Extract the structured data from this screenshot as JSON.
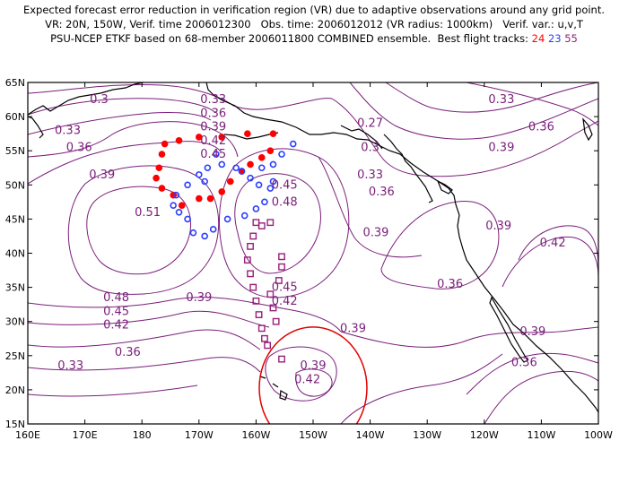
{
  "title": {
    "line1": "Expected forecast error reduction in verification region (VR) due to adaptive observations around any grid point.",
    "line2": "VR: 20N, 150W, Verif. time 2006012300   Obs. time: 2006012012 (VR radius: 1000km)   Verif. var.: u,v,T",
    "line3_prefix": "PSU-NCEP ETKF based on 68-member 2006011800 COMBINED ensemble.  Best flight tracks: ",
    "track_a": "24",
    "track_b": "23",
    "track_c": "55"
  },
  "colors": {
    "contour": "#7a1f7a",
    "coast": "#000000",
    "track_a": "#ff0000",
    "track_b": "#2b3fff",
    "track_c": "#9a1f7a",
    "verification_circle": "#e00000"
  },
  "axes": {
    "lat_labels": [
      "65N",
      "60N",
      "55N",
      "50N",
      "45N",
      "40N",
      "35N",
      "30N",
      "25N",
      "20N",
      "15N"
    ],
    "lon_labels": [
      "160E",
      "170E",
      "180",
      "170W",
      "160W",
      "150W",
      "140W",
      "130W",
      "120W",
      "110W",
      "100W"
    ]
  },
  "contour_labels": [
    {
      "text": "0.3",
      "lon": 172.5,
      "lat": 62.5
    },
    {
      "text": "0.33",
      "lon": -167.5,
      "lat": 62.5
    },
    {
      "text": "0.36",
      "lon": -167.5,
      "lat": 60.5
    },
    {
      "text": "0.39",
      "lon": -167.5,
      "lat": 58.5
    },
    {
      "text": "0.42",
      "lon": -167.5,
      "lat": 56.5
    },
    {
      "text": "0.45",
      "lon": -167.5,
      "lat": 54.5
    },
    {
      "text": "0.33",
      "lon": 167,
      "lat": 58
    },
    {
      "text": "0.36",
      "lon": 169,
      "lat": 55.5
    },
    {
      "text": "0.39",
      "lon": 173,
      "lat": 51.5
    },
    {
      "text": "0.51",
      "lon": -179,
      "lat": 46
    },
    {
      "text": "0.45",
      "lon": -155,
      "lat": 50
    },
    {
      "text": "0.48",
      "lon": -155,
      "lat": 47.5
    },
    {
      "text": "0.27",
      "lon": -140,
      "lat": 59
    },
    {
      "text": "0.3",
      "lon": -140,
      "lat": 55.5
    },
    {
      "text": "0.33",
      "lon": -140,
      "lat": 51.5
    },
    {
      "text": "0.36",
      "lon": -138,
      "lat": 49
    },
    {
      "text": "0.39",
      "lon": -139,
      "lat": 43
    },
    {
      "text": "0.33",
      "lon": -117,
      "lat": 62.5
    },
    {
      "text": "0.39",
      "lon": -117,
      "lat": 55.5
    },
    {
      "text": "0.36",
      "lon": -110,
      "lat": 58.5
    },
    {
      "text": "0.39",
      "lon": -117.5,
      "lat": 44
    },
    {
      "text": "0.42",
      "lon": -108,
      "lat": 41.5
    },
    {
      "text": "0.36",
      "lon": -126,
      "lat": 35.5
    },
    {
      "text": "0.48",
      "lon": 175.5,
      "lat": 33.5
    },
    {
      "text": "0.45",
      "lon": 175.5,
      "lat": 31.5
    },
    {
      "text": "0.42",
      "lon": 175.5,
      "lat": 29.5
    },
    {
      "text": "0.39",
      "lon": -170,
      "lat": 33.5
    },
    {
      "text": "0.45",
      "lon": -155,
      "lat": 35
    },
    {
      "text": "0.42",
      "lon": -155,
      "lat": 33
    },
    {
      "text": "0.39",
      "lon": -143,
      "lat": 29
    },
    {
      "text": "0.36",
      "lon": 177.5,
      "lat": 25.5
    },
    {
      "text": "0.33",
      "lon": 167.5,
      "lat": 23.5
    },
    {
      "text": "0.39",
      "lon": -150,
      "lat": 23.5
    },
    {
      "text": "0.42",
      "lon": -151,
      "lat": 21.5
    },
    {
      "text": "0.39",
      "lon": -111.5,
      "lat": 28.5
    },
    {
      "text": "0.36",
      "lon": -113,
      "lat": 24
    }
  ],
  "tracks": {
    "red": [
      [
        -173.5,
        56.5
      ],
      [
        -170,
        57
      ],
      [
        -176,
        56
      ],
      [
        -176.5,
        54.5
      ],
      [
        -177,
        52.5
      ],
      [
        -177.5,
        51
      ],
      [
        -176.5,
        49.5
      ],
      [
        -174.5,
        48.5
      ],
      [
        -173,
        47
      ],
      [
        -170,
        48
      ],
      [
        -168,
        48
      ],
      [
        -166,
        49
      ],
      [
        -164.5,
        50.5
      ],
      [
        -162.5,
        52
      ],
      [
        -161,
        53
      ],
      [
        -159,
        54
      ],
      [
        -157.5,
        55
      ],
      [
        -166,
        57
      ],
      [
        -161.5,
        57.5
      ],
      [
        -157,
        57.5
      ]
    ],
    "blue": [
      [
        -174,
        48.5
      ],
      [
        -174.5,
        47
      ],
      [
        -173.5,
        46
      ],
      [
        -172,
        45
      ],
      [
        -171,
        43
      ],
      [
        -169,
        42.5
      ],
      [
        -167.5,
        43.5
      ],
      [
        -165,
        45
      ],
      [
        -162,
        45.5
      ],
      [
        -160,
        46.5
      ],
      [
        -158.5,
        47.5
      ],
      [
        -157.5,
        49.5
      ],
      [
        -157,
        50.5
      ],
      [
        -159.5,
        50
      ],
      [
        -161,
        51
      ],
      [
        -162.5,
        52
      ],
      [
        -159,
        52.5
      ],
      [
        -157,
        53
      ],
      [
        -155.5,
        54.5
      ],
      [
        -153.5,
        56
      ],
      [
        -167,
        54.5
      ],
      [
        -163.5,
        52.5
      ],
      [
        -172,
        50
      ],
      [
        -170,
        51.5
      ],
      [
        -168.5,
        52.5
      ],
      [
        -166,
        53
      ],
      [
        -169,
        50.5
      ]
    ],
    "purple": [
      [
        -160,
        44.5
      ],
      [
        -159,
        44
      ],
      [
        -157.5,
        44.5
      ],
      [
        -160.5,
        42.5
      ],
      [
        -161,
        41
      ],
      [
        -161.5,
        39
      ],
      [
        -161,
        37
      ],
      [
        -160.5,
        35
      ],
      [
        -160,
        33
      ],
      [
        -159.5,
        31
      ],
      [
        -159,
        29
      ],
      [
        -158.5,
        27.5
      ],
      [
        -158,
        26.5
      ],
      [
        -155.5,
        24.5
      ],
      [
        -156.5,
        30
      ],
      [
        -157,
        32
      ],
      [
        -157.5,
        34
      ],
      [
        -156,
        36
      ],
      [
        -155.5,
        38
      ],
      [
        -155.5,
        39.5
      ]
    ]
  },
  "verification_region": {
    "lon": -150,
    "lat": 20
  }
}
